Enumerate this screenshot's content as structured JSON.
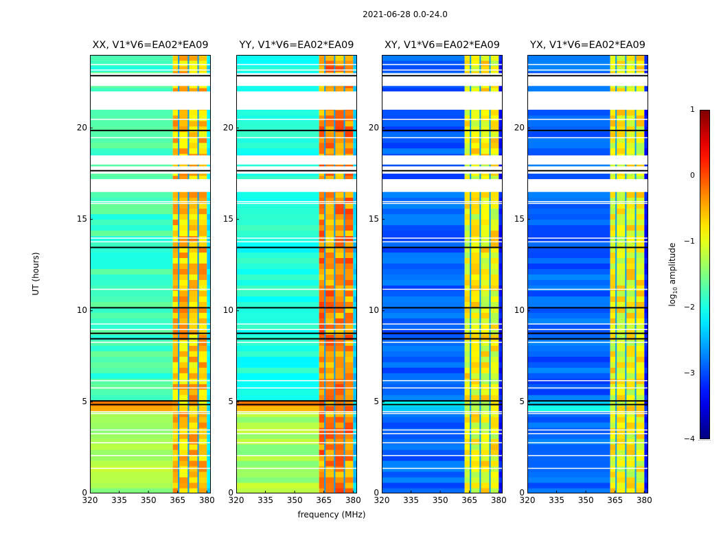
{
  "chart_data": {
    "type": "heatmap",
    "title": "2021-06-28 0.0-24.0",
    "xlabel": "frequency (MHz)",
    "ylabel": "UT (hours)",
    "xlim": [
      320,
      382
    ],
    "ylim": [
      0,
      24
    ],
    "xticks": [
      "320",
      "335",
      "350",
      "365",
      "380"
    ],
    "xtick_values": [
      320,
      335,
      350,
      365,
      380
    ],
    "yticks": [
      "0",
      "5",
      "10",
      "15",
      "20"
    ],
    "ytick_values": [
      0,
      5,
      10,
      15,
      20
    ],
    "colormap": "jet",
    "colorbar": {
      "label": "log10 amplitude",
      "label_base": "log",
      "label_sub": "10",
      "label_rest": " amplitude",
      "range": [
        -4,
        1
      ],
      "ticks": [
        "1",
        "0",
        "−1",
        "−2",
        "−3",
        "−4"
      ],
      "tick_values": [
        1,
        0,
        -1,
        -2,
        -3,
        -4
      ]
    },
    "panels": [
      {
        "name": "XX",
        "title": "XX, V1*V6=EA02*EA09",
        "background_level": -1.8,
        "band_level": -0.6,
        "low_segment_level": -1.3
      },
      {
        "name": "YY",
        "title": "YY, V1*V6=EA02*EA09",
        "background_level": -2.0,
        "band_level": -0.3,
        "low_segment_level": -1.3
      },
      {
        "name": "XY",
        "title": "XY, V1*V6=EA02*EA09",
        "background_level": -2.9,
        "band_level": -0.9,
        "low_segment_level": -2.9
      },
      {
        "name": "YX",
        "title": "YX, V1*V6=EA02*EA09",
        "background_level": -2.9,
        "band_level": -0.9,
        "low_segment_level": -2.9
      }
    ],
    "rfi_band_MHz": [
      362.5,
      380
    ],
    "channel_gaps_MHz": [
      365.5,
      370.5,
      375.5
    ],
    "flagged_hours": [
      [
        22.3,
        23.0
      ],
      [
        21.0,
        22.0
      ],
      [
        18.0,
        18.5
      ],
      [
        17.5,
        17.9
      ],
      [
        16.5,
        17.2
      ]
    ],
    "black_line_hours": [
      22.9,
      19.9,
      17.7,
      13.5,
      10.2,
      8.8,
      8.5,
      5.1,
      4.9
    ]
  }
}
